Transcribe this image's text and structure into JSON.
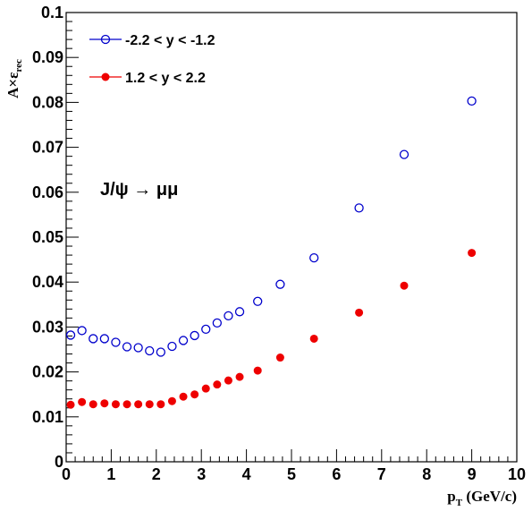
{
  "chart_data": {
    "type": "scatter",
    "xlabel_main": "p",
    "xlabel_sub": "T",
    "xlabel_unit": " (GeV/c)",
    "ylabel_main": "A×ε",
    "ylabel_sub": "rec",
    "annotation": "J/ψ → μμ",
    "xlim": [
      0,
      10
    ],
    "ylim": [
      0,
      0.1
    ],
    "x_ticks": [
      "0",
      "1",
      "2",
      "3",
      "4",
      "5",
      "6",
      "7",
      "8",
      "9",
      "10"
    ],
    "y_ticks": [
      "0",
      "0.01",
      "0.02",
      "0.03",
      "0.04",
      "0.05",
      "0.06",
      "0.07",
      "0.08",
      "0.09",
      "0.1"
    ],
    "legend_position": "top-left",
    "series": [
      {
        "name": "-2.2 < y < -1.2",
        "color": "#0000cc",
        "marker": "open-circle",
        "x": [
          0.1,
          0.35,
          0.6,
          0.85,
          1.1,
          1.35,
          1.6,
          1.85,
          2.1,
          2.35,
          2.6,
          2.85,
          3.1,
          3.35,
          3.6,
          3.85,
          4.25,
          4.75,
          5.5,
          6.5,
          7.5,
          9.0
        ],
        "y": [
          0.0282,
          0.0292,
          0.0274,
          0.0274,
          0.0266,
          0.0256,
          0.0254,
          0.0247,
          0.0244,
          0.0257,
          0.027,
          0.0281,
          0.0295,
          0.0309,
          0.0325,
          0.0334,
          0.0357,
          0.0395,
          0.0454,
          0.0565,
          0.0684,
          0.0803
        ]
      },
      {
        "name": "1.2 < y < 2.2",
        "color": "#ee0000",
        "marker": "filled-circle",
        "x": [
          0.1,
          0.35,
          0.6,
          0.85,
          1.1,
          1.35,
          1.6,
          1.85,
          2.1,
          2.35,
          2.6,
          2.85,
          3.1,
          3.35,
          3.6,
          3.85,
          4.25,
          4.75,
          5.5,
          6.5,
          7.5,
          9.0
        ],
        "y": [
          0.0127,
          0.0133,
          0.0128,
          0.013,
          0.0128,
          0.0128,
          0.0128,
          0.0128,
          0.0128,
          0.0135,
          0.0145,
          0.015,
          0.0163,
          0.0172,
          0.0181,
          0.0189,
          0.0203,
          0.0232,
          0.0274,
          0.0332,
          0.0392,
          0.0465
        ]
      }
    ]
  }
}
